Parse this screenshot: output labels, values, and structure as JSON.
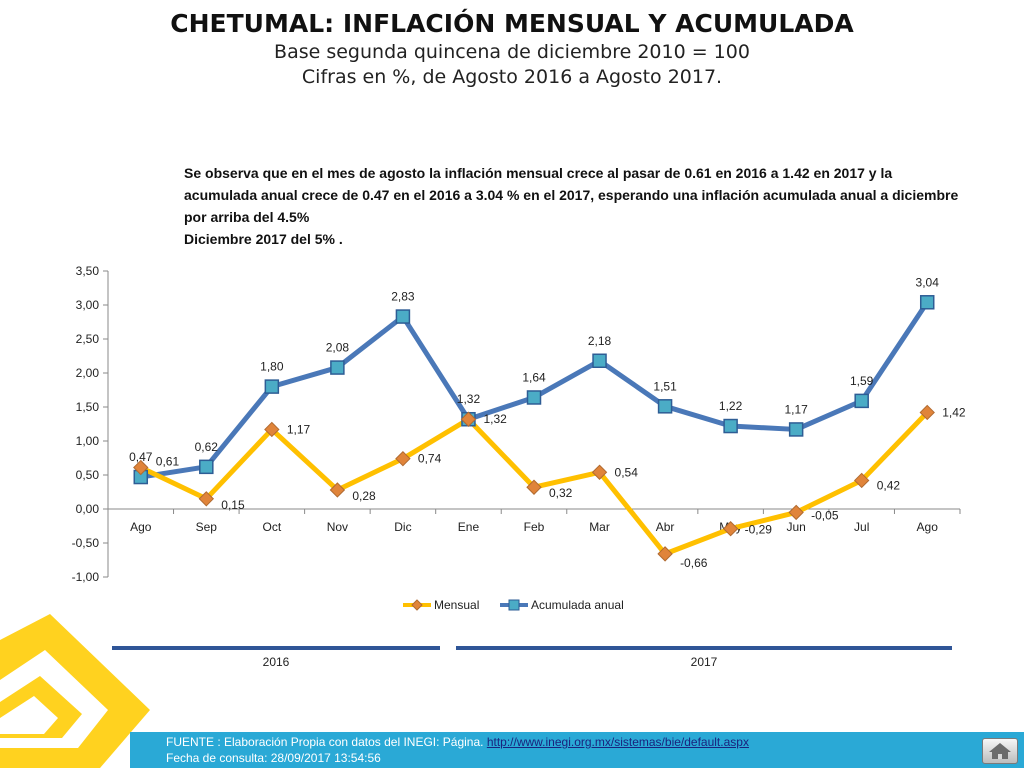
{
  "header": {
    "title": "CHETUMAL: INFLACIÓN MENSUAL Y ACUMULADA",
    "subtitle1": "Base segunda quincena de diciembre 2010 = 100",
    "subtitle2": "Cifras en %,  de Agosto 2016 a Agosto 2017."
  },
  "note": {
    "line1": "Se observa que en el mes de agosto  la inflación mensual crece al pasar de 0.61 en 2016 a  1.42 en 2017 y la acumulada anual crece de 0.47 en el 2016  a  3.04 % en el 2017, esperando una inflación acumulada anual a diciembre por arriba del 4.5%",
    "line2": "Diciembre 2017 del 5%  ."
  },
  "chart_data": {
    "type": "line",
    "categories": [
      "Ago",
      "Sep",
      "Oct",
      "Nov",
      "Dic",
      "Ene",
      "Feb",
      "Mar",
      "Abr",
      "May",
      "Jun",
      "Jul",
      "Ago"
    ],
    "series": [
      {
        "name": "Mensual",
        "color": "#ffc000",
        "marker_color": "#e0843a",
        "marker": "diamond",
        "values": [
          0.61,
          0.15,
          1.17,
          0.28,
          0.74,
          1.32,
          0.32,
          0.54,
          -0.66,
          -0.29,
          -0.05,
          0.42,
          1.42
        ],
        "labels": [
          "0,61",
          "0,15",
          "1,17",
          "0,28",
          "0,74",
          "1,32",
          "0,32",
          "0,54",
          "-0,66",
          "-0,29",
          "-0,05",
          "0,42",
          "1,42"
        ]
      },
      {
        "name": "Acumulada anual",
        "color": "#4a78b8",
        "marker_color": "#4bacc6",
        "marker": "square",
        "values": [
          0.47,
          0.62,
          1.8,
          2.08,
          2.83,
          1.32,
          1.64,
          2.18,
          1.51,
          1.22,
          1.17,
          1.59,
          3.04
        ],
        "labels": [
          "0,47",
          "0,62",
          "1,80",
          "2,08",
          "2,83",
          "1,32",
          "1,64",
          "2,18",
          "1,51",
          "1,22",
          "1,17",
          "1,59",
          "3,04"
        ]
      }
    ],
    "ylim": [
      -1.0,
      3.5
    ],
    "yticks": [
      3.5,
      3.0,
      2.5,
      2.0,
      1.5,
      1.0,
      0.5,
      0.0,
      -0.5,
      -1.0
    ],
    "ytick_labels": [
      "3,50",
      "3,00",
      "2,50",
      "2,00",
      "1,50",
      "1,00",
      "0,50",
      "0,00",
      "-0,50",
      "-1,00"
    ],
    "grid": false,
    "legend_position": "bottom",
    "year_groups": [
      {
        "label": "2016",
        "start": 0,
        "end": 4
      },
      {
        "label": "2017",
        "start": 5,
        "end": 12
      }
    ]
  },
  "footer": {
    "source_prefix": "FUENTE : Elaboración Propia con datos del INEGI: Página. ",
    "source_link": "http://www.inegi.org.mx/sistemas/bie/default.aspx",
    "consult_date": "Fecha de consulta: 28/09/2017 13:54:56"
  },
  "icons": {
    "home": "home-icon",
    "deco": "yellow-geometric-logo"
  }
}
